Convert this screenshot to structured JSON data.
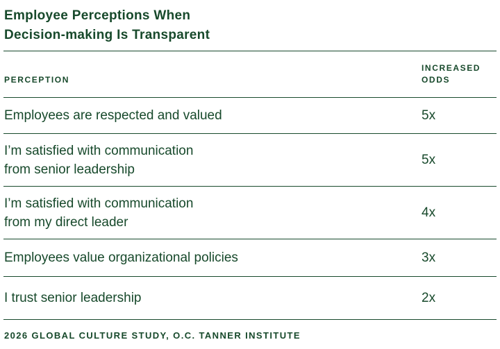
{
  "colors": {
    "text": "#17492B",
    "line": "#17492B",
    "background": "#FFFFFF"
  },
  "title": "Employee Perceptions When\nDecision-making Is Transparent",
  "table": {
    "perception_header": "PERCEPTION",
    "odds_header": "INCREASED\nODDS",
    "rows": [
      {
        "perception": "Employees are respected and valued",
        "odds": "5x"
      },
      {
        "perception": "I’m satisfied with communication\nfrom senior leadership",
        "odds": "5x"
      },
      {
        "perception": "I’m satisfied with communication\nfrom my direct leader",
        "odds": "4x"
      },
      {
        "perception": "Employees value organizational policies",
        "odds": "3x"
      },
      {
        "perception": "I trust senior leadership",
        "odds": "2x"
      }
    ]
  },
  "footer": "2026 GLOBAL CULTURE STUDY, O.C. TANNER INSTITUTE",
  "chart_data": {
    "type": "table",
    "title": "Employee Perceptions When Decision-making Is Transparent",
    "columns": [
      "PERCEPTION",
      "INCREASED ODDS"
    ],
    "rows": [
      [
        "Employees are respected and valued",
        "5x"
      ],
      [
        "I’m satisfied with communication from senior leadership",
        "5x"
      ],
      [
        "I’m satisfied with communication from my direct leader",
        "4x"
      ],
      [
        "Employees value organizational policies",
        "3x"
      ],
      [
        "I trust senior leadership",
        "2x"
      ]
    ],
    "odds_values": [
      5,
      5,
      4,
      3,
      2
    ],
    "source": "2026 GLOBAL CULTURE STUDY, O.C. TANNER INSTITUTE",
    "legend_position": "none",
    "grid": "horizontal-rules"
  }
}
